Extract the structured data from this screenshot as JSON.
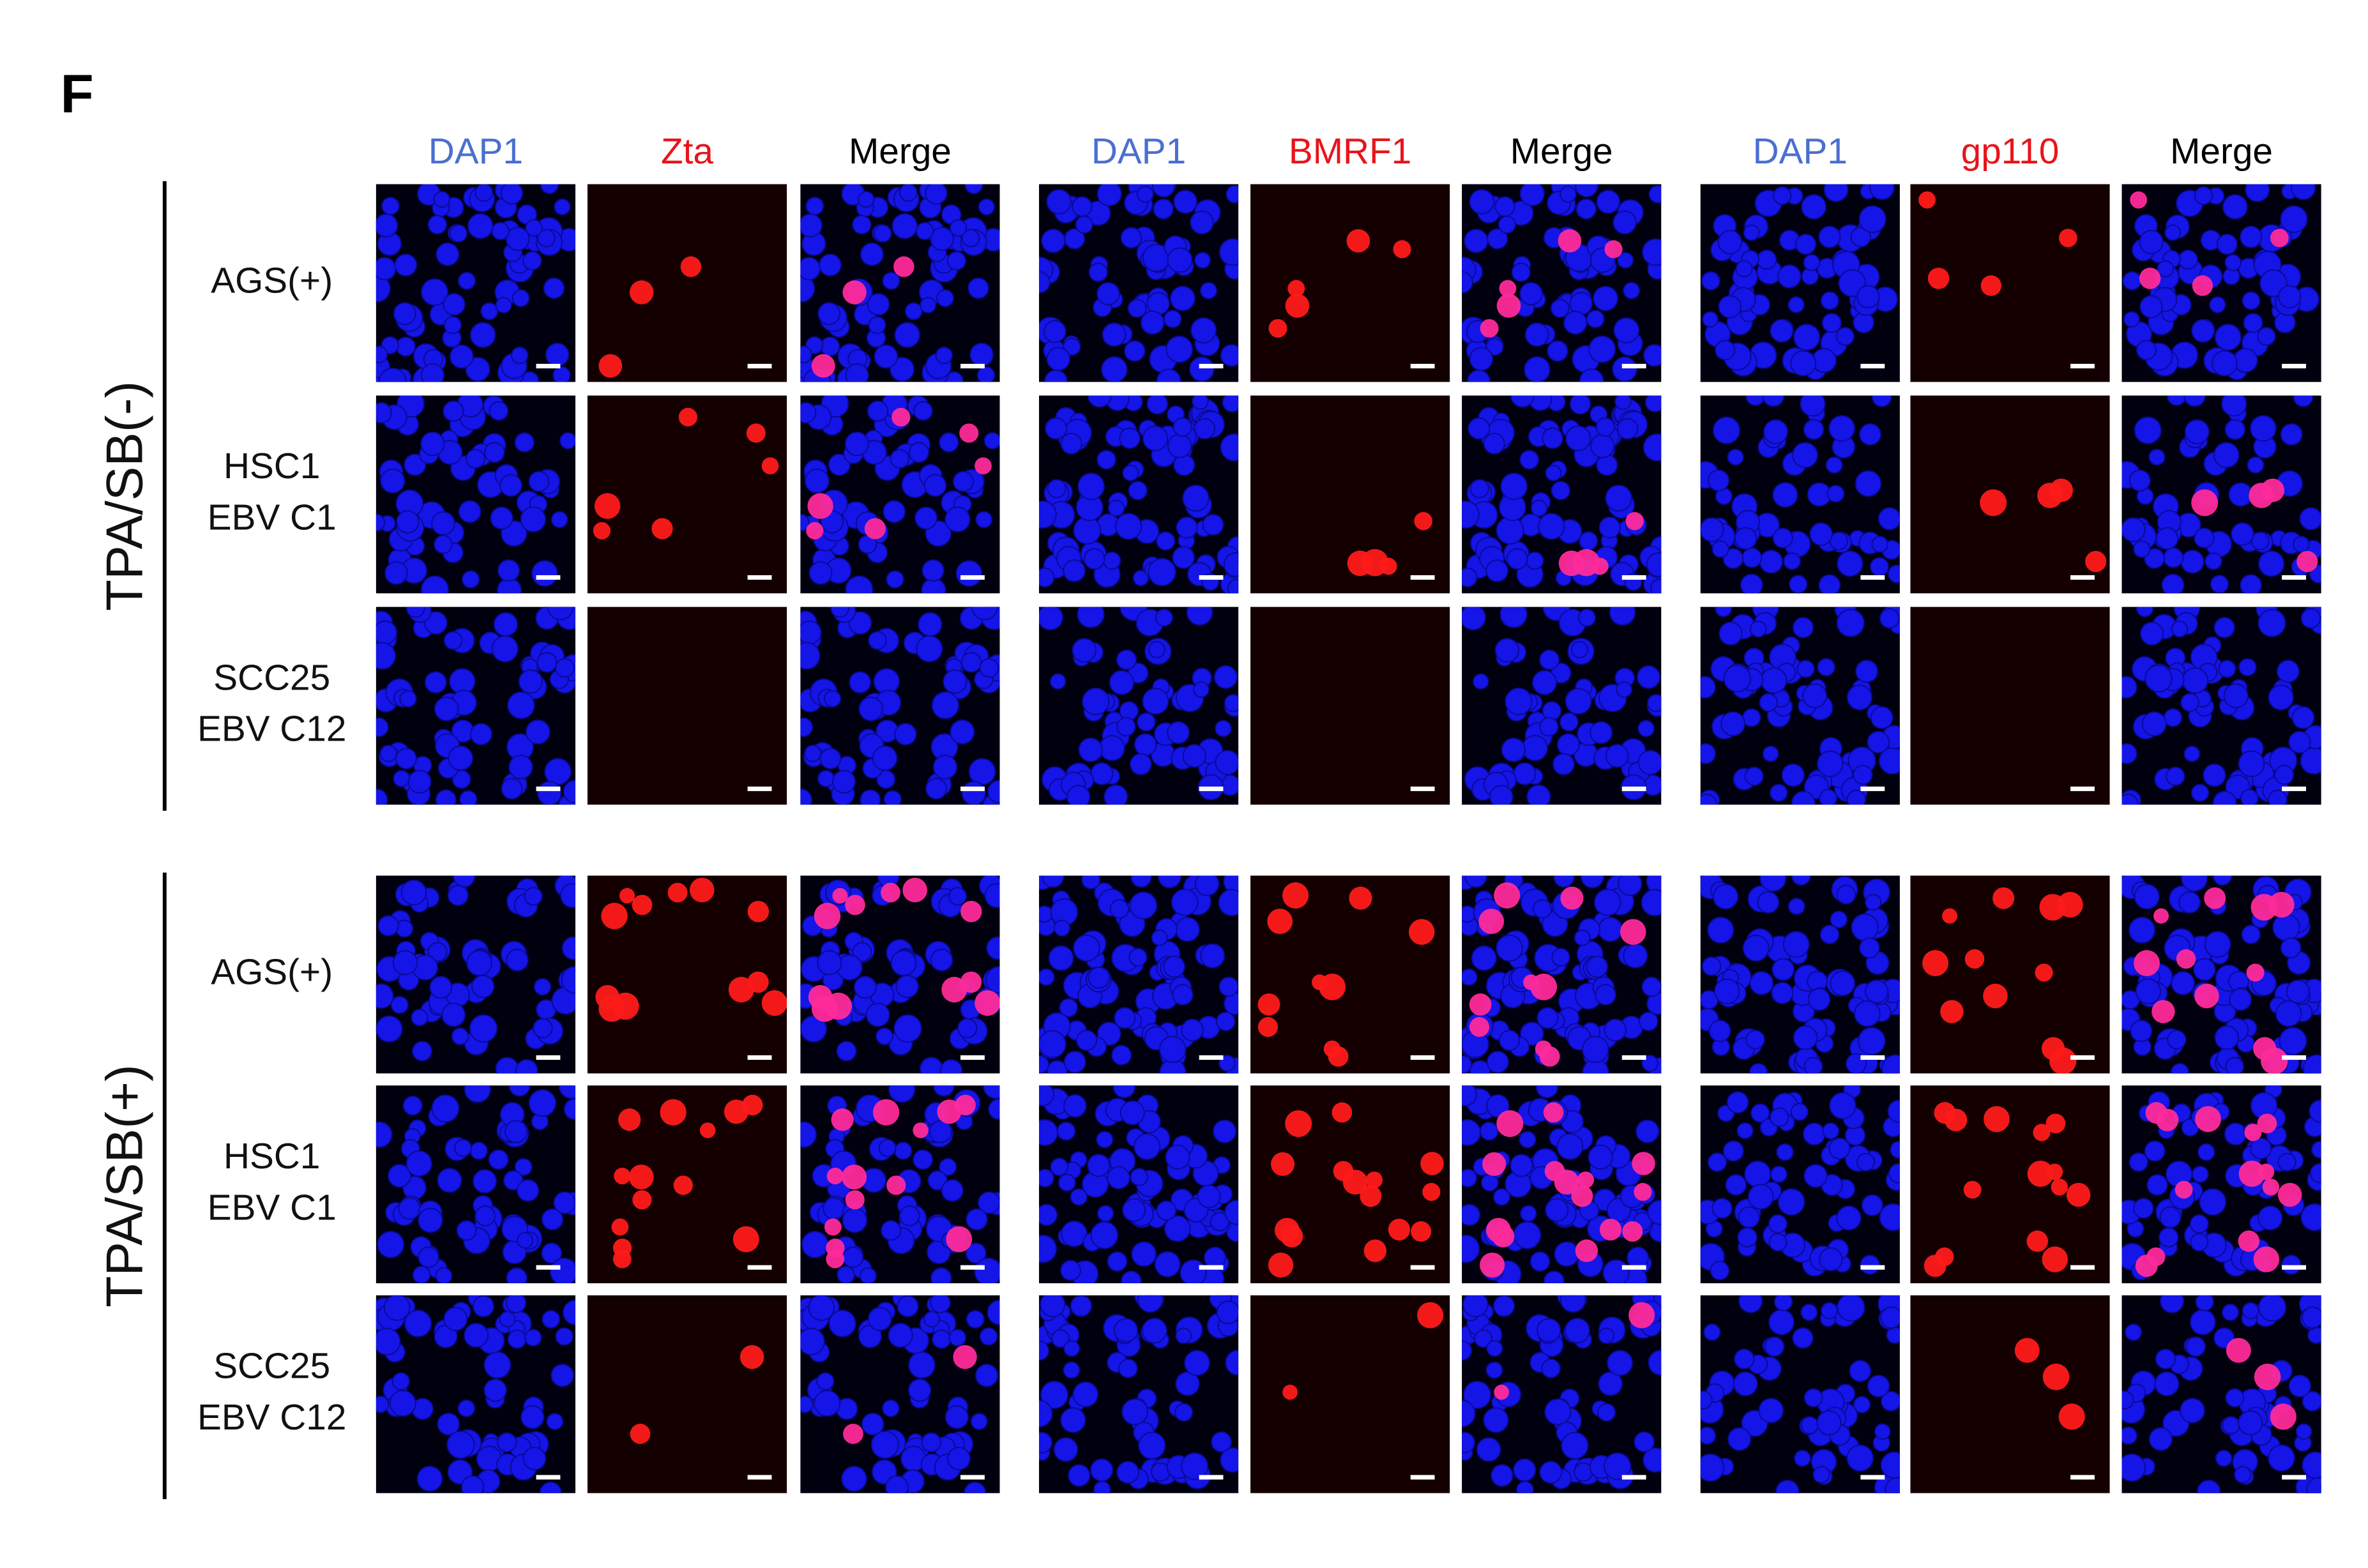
{
  "panel_label": "F",
  "column_headers": [
    "DAP1",
    "Zta",
    "Merge",
    "DAP1",
    "BMRF1",
    "Merge",
    "DAP1",
    "gp110",
    "Merge"
  ],
  "groups": [
    {
      "label": "TPA/SB(-)",
      "rows": [
        [
          "AGS(+)"
        ],
        [
          "HSC1",
          "EBV C1"
        ],
        [
          "SCC25",
          "EBV C12"
        ]
      ]
    },
    {
      "label": "TPA/SB(+)",
      "rows": [
        [
          "AGS(+)"
        ],
        [
          "HSC1",
          "EBV C1"
        ],
        [
          "SCC25",
          "EBV C12"
        ]
      ]
    }
  ]
}
